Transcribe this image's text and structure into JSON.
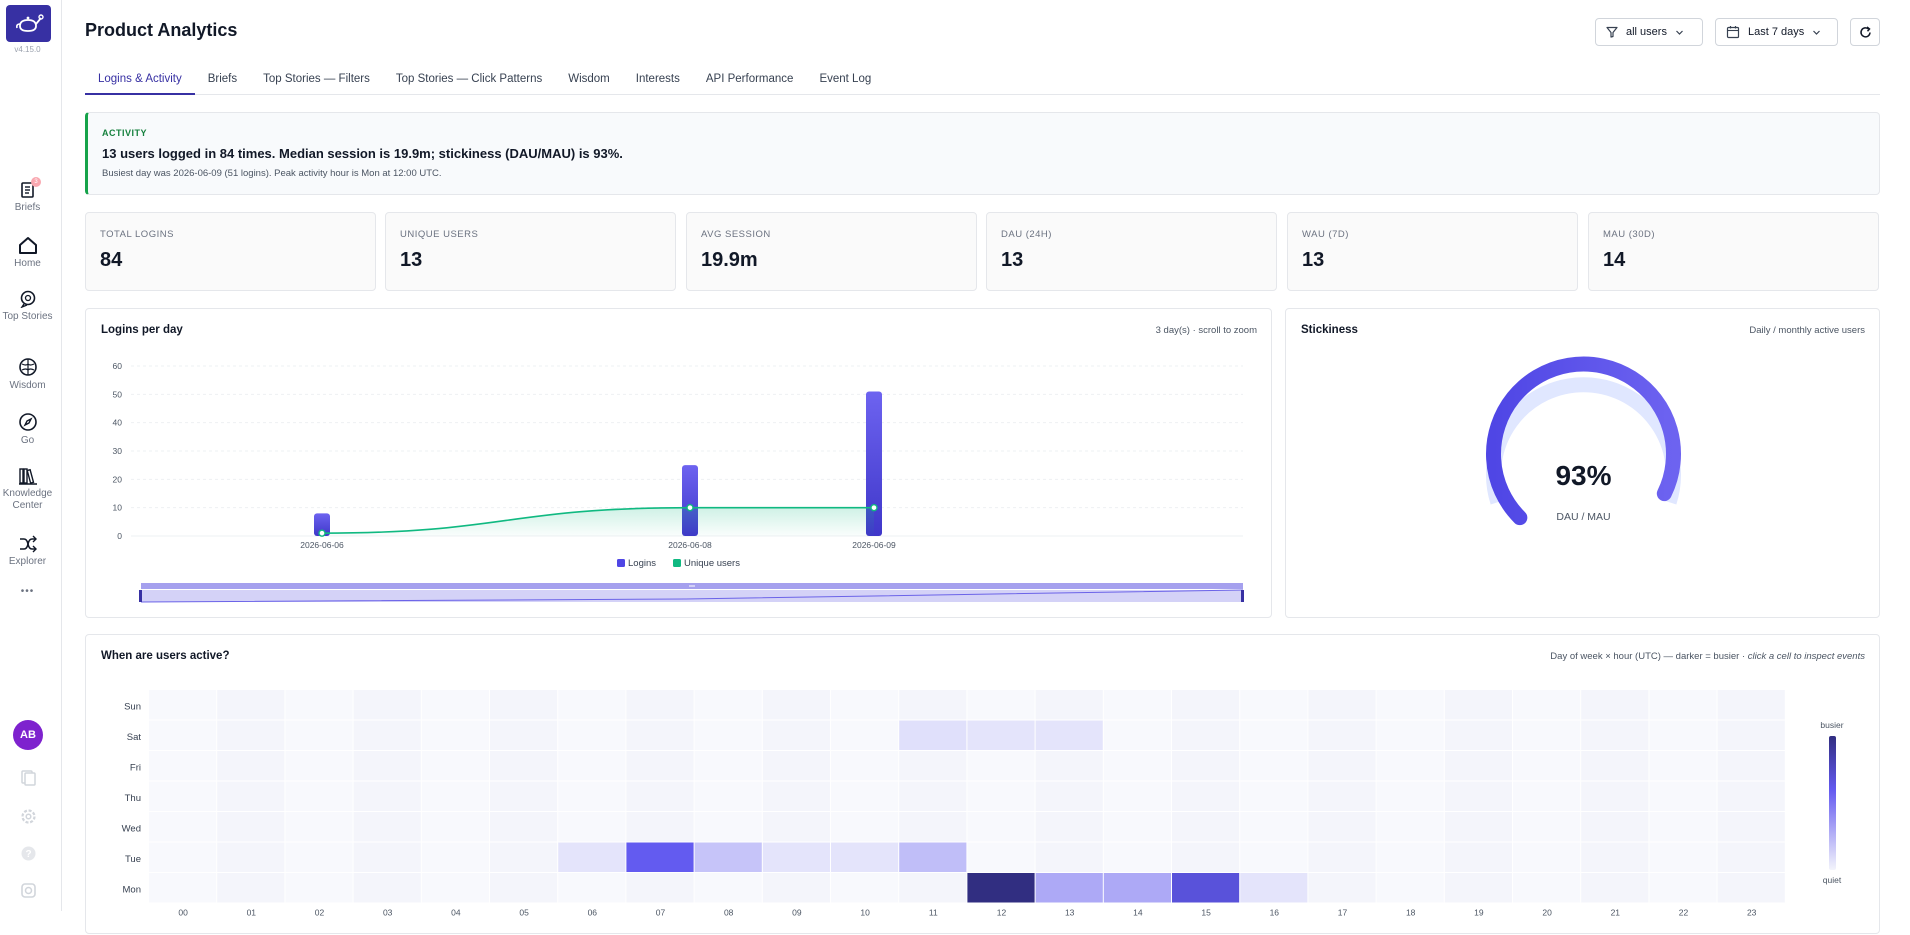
{
  "app": {
    "version": "v4.15.0",
    "logo_icon": "teapot-logo-icon",
    "colors": {
      "accent": "#4f46e5",
      "accent_dark": "#312e81",
      "green": "#16a34a",
      "avatar": "#7e22ce"
    }
  },
  "sidebar": {
    "items": [
      {
        "label": "Briefs",
        "icon": "document-icon",
        "badge": "3"
      },
      {
        "label": "Home",
        "icon": "home-icon"
      },
      {
        "label": "Top Stories",
        "icon": "chat-icon"
      },
      {
        "label": "Wisdom",
        "icon": "brain-icon"
      },
      {
        "label": "Go",
        "icon": "compass-icon"
      },
      {
        "label": "Knowledge Center",
        "icon": "library-icon"
      },
      {
        "label": "Explorer",
        "icon": "shuffle-icon"
      }
    ],
    "more": "•••",
    "avatar_initials": "AB",
    "bottom_icons": [
      "docs-icon",
      "gear-icon",
      "help-icon",
      "settings-icon"
    ]
  },
  "header": {
    "title": "Product Analytics",
    "filter_label": "all users",
    "range_label": "Last 7 days"
  },
  "tabs": [
    {
      "label": "Logins & Activity",
      "active": true
    },
    {
      "label": "Briefs"
    },
    {
      "label": "Top Stories — Filters"
    },
    {
      "label": "Top Stories — Click Patterns"
    },
    {
      "label": "Wisdom"
    },
    {
      "label": "Interests"
    },
    {
      "label": "API Performance"
    },
    {
      "label": "Event Log"
    }
  ],
  "activity": {
    "label": "ACTIVITY",
    "headline": "13 users logged in 84 times. Median session is 19.9m; stickiness (DAU/MAU) is 93%.",
    "sub": "Busiest day was 2026-06-09 (51 logins). Peak activity hour is Mon at 12:00 UTC."
  },
  "kpis": [
    {
      "label": "TOTAL LOGINS",
      "value": "84"
    },
    {
      "label": "UNIQUE USERS",
      "value": "13"
    },
    {
      "label": "AVG SESSION",
      "value": "19.9m"
    },
    {
      "label": "DAU (24H)",
      "value": "13"
    },
    {
      "label": "WAU (7D)",
      "value": "13"
    },
    {
      "label": "MAU (30D)",
      "value": "14"
    }
  ],
  "logins_card": {
    "title": "Logins per day",
    "note": "3 day(s) · scroll to zoom"
  },
  "stickiness_card": {
    "title": "Stickiness",
    "note": "Daily / monthly active users",
    "value": "93%",
    "caption": "DAU / MAU"
  },
  "heatmap_card": {
    "title": "When are users active?",
    "note": "Day of week × hour (UTC) — darker = busier · ",
    "note_italic": "click a cell to inspect events",
    "legend_top": "busier",
    "legend_bottom": "quiet"
  },
  "chart_data": [
    {
      "type": "bar",
      "title": "Logins per day",
      "categories": [
        "2026-06-06",
        "2026-06-08",
        "2026-06-09"
      ],
      "ylim": [
        0,
        60
      ],
      "yticks": [
        0,
        10,
        20,
        30,
        40,
        50,
        60
      ],
      "grid": true,
      "legend": "bottom",
      "series": [
        {
          "name": "Logins",
          "kind": "bar",
          "color": "#4f46e5",
          "values": [
            8,
            25,
            51
          ]
        },
        {
          "name": "Unique users",
          "kind": "line",
          "color": "#10b981",
          "values": [
            1,
            10,
            10
          ]
        }
      ]
    },
    {
      "type": "heatmap",
      "title": "When are users active?",
      "rows": [
        "Sun",
        "Sat",
        "Fri",
        "Thu",
        "Wed",
        "Tue",
        "Mon"
      ],
      "columns": [
        "00",
        "01",
        "02",
        "03",
        "04",
        "05",
        "06",
        "07",
        "08",
        "09",
        "10",
        "11",
        "12",
        "13",
        "14",
        "15",
        "16",
        "17",
        "18",
        "19",
        "20",
        "21",
        "22",
        "23"
      ],
      "intensity": [
        [
          0,
          0,
          0,
          0,
          0,
          0,
          0,
          0,
          0,
          0,
          0,
          0,
          0,
          0,
          0,
          0,
          0,
          0,
          0,
          0,
          0,
          0,
          0,
          0
        ],
        [
          0,
          0,
          0,
          0,
          0,
          0,
          0,
          0,
          0,
          0,
          0,
          0.12,
          0.1,
          0.1,
          0,
          0,
          0,
          0,
          0,
          0,
          0,
          0,
          0,
          0
        ],
        [
          0,
          0,
          0,
          0,
          0,
          0,
          0,
          0,
          0,
          0,
          0,
          0,
          0,
          0,
          0,
          0,
          0,
          0,
          0,
          0,
          0,
          0,
          0,
          0
        ],
        [
          0,
          0,
          0,
          0,
          0,
          0,
          0,
          0,
          0,
          0,
          0,
          0,
          0,
          0,
          0,
          0,
          0,
          0,
          0,
          0,
          0,
          0,
          0,
          0
        ],
        [
          0,
          0,
          0,
          0,
          0,
          0,
          0,
          0,
          0,
          0,
          0,
          0,
          0,
          0,
          0,
          0,
          0,
          0,
          0,
          0,
          0,
          0,
          0,
          0
        ],
        [
          0,
          0,
          0,
          0,
          0,
          0,
          0.1,
          0.75,
          0.25,
          0.1,
          0.1,
          0.28,
          0,
          0,
          0,
          0,
          0,
          0,
          0,
          0,
          0,
          0,
          0,
          0
        ],
        [
          0,
          0,
          0,
          0,
          0,
          0,
          0,
          0,
          0,
          0,
          0,
          0,
          1,
          0.38,
          0.38,
          0.8,
          0.1,
          0,
          0,
          0,
          0,
          0,
          0,
          0
        ]
      ]
    }
  ]
}
